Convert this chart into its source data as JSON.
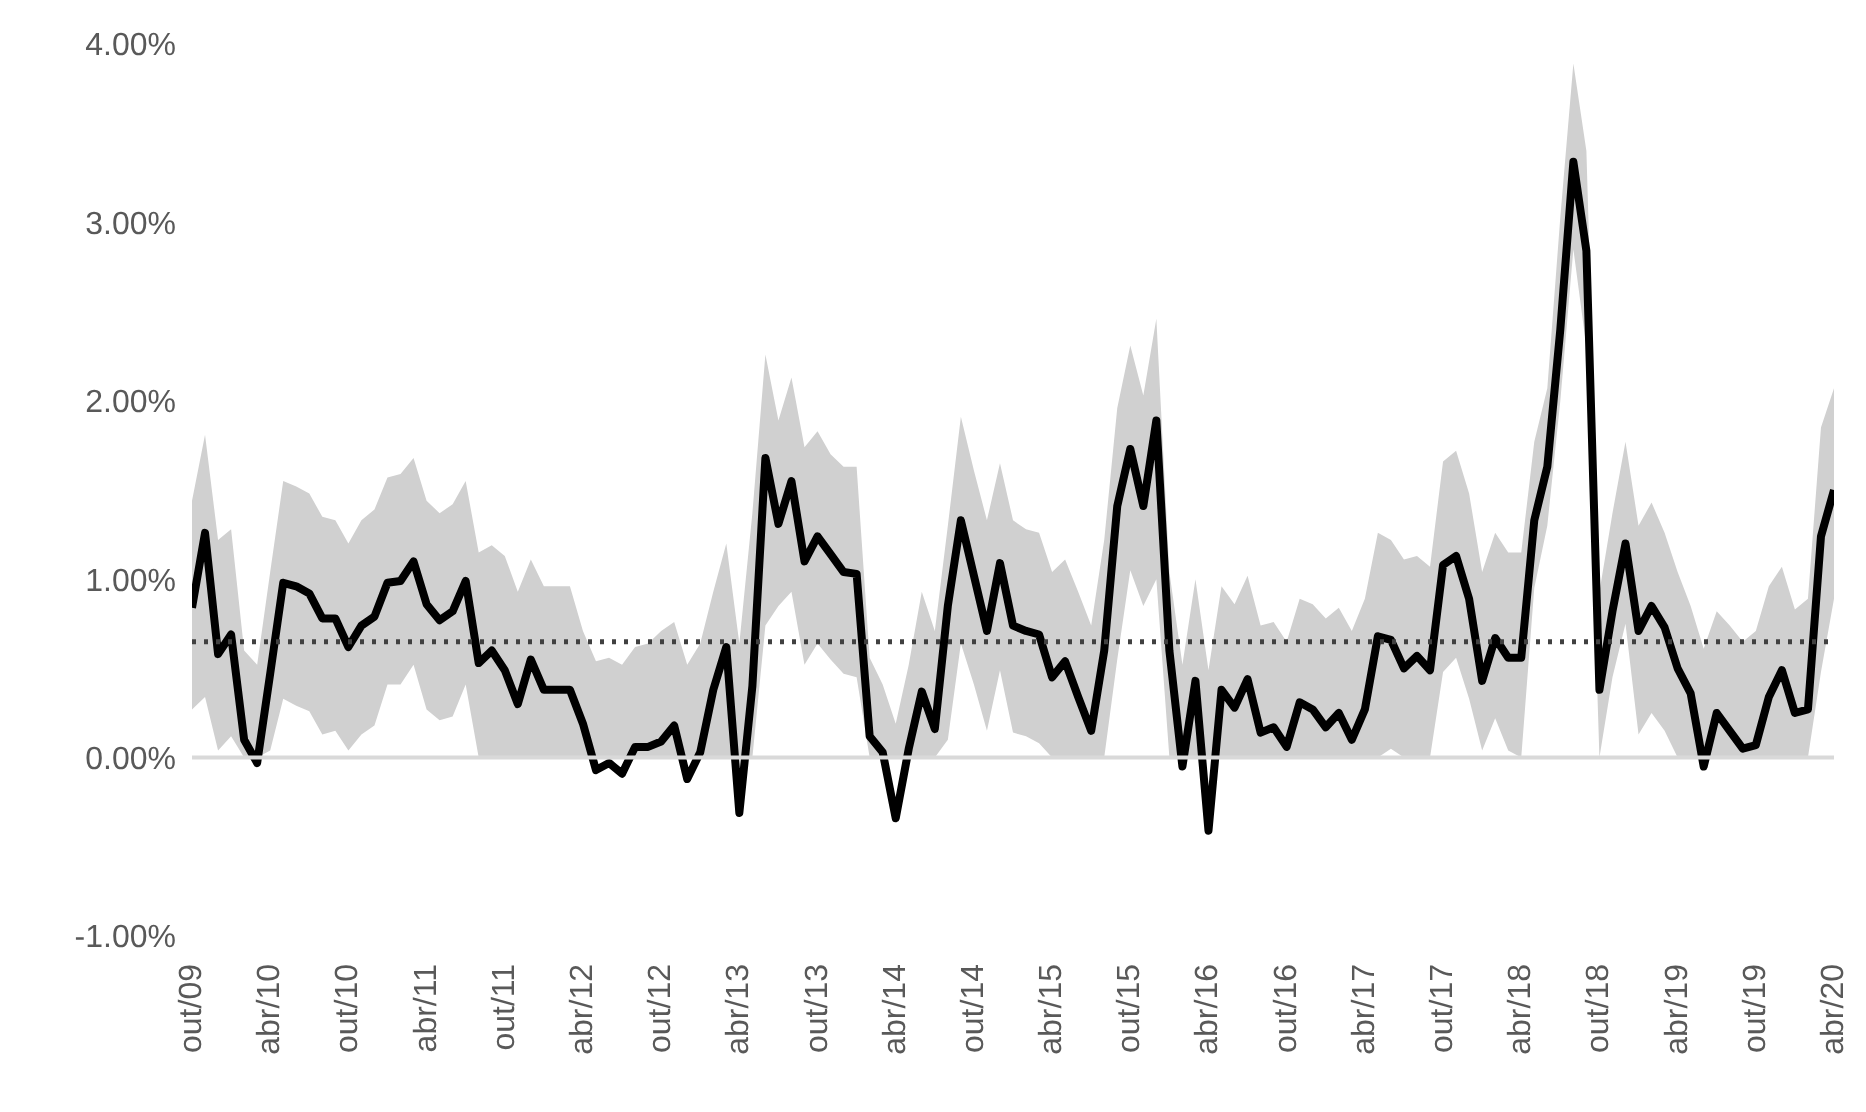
{
  "chart_data": {
    "type": "line",
    "categories": [
      "out/09",
      null,
      null,
      null,
      null,
      null,
      "abr/10",
      null,
      null,
      null,
      null,
      null,
      "out/10",
      null,
      null,
      null,
      null,
      null,
      "abr/11",
      null,
      null,
      null,
      null,
      null,
      "out/11",
      null,
      null,
      null,
      null,
      null,
      "abr/12",
      null,
      null,
      null,
      null,
      null,
      "out/12",
      null,
      null,
      null,
      null,
      null,
      "abr/13",
      null,
      null,
      null,
      null,
      null,
      "out/13",
      null,
      null,
      null,
      null,
      null,
      "abr/14",
      null,
      null,
      null,
      null,
      null,
      "out/14",
      null,
      null,
      null,
      null,
      null,
      "abr/15",
      null,
      null,
      null,
      null,
      null,
      "out/15",
      null,
      null,
      null,
      null,
      null,
      "abr/16",
      null,
      null,
      null,
      null,
      null,
      "out/16",
      null,
      null,
      null,
      null,
      null,
      "abr/17",
      null,
      null,
      null,
      null,
      null,
      "out/17",
      null,
      null,
      null,
      null,
      null,
      "abr/18",
      null,
      null,
      null,
      null,
      null,
      "out/18",
      null,
      null,
      null,
      null,
      null,
      "abr/19",
      null,
      null,
      null,
      null,
      null,
      "out/19",
      null,
      null,
      null,
      null,
      null,
      "abr/20"
    ],
    "series": [
      {
        "color": "#000000",
        "values": [
          0.84,
          1.26,
          0.58,
          0.69,
          0.1,
          -0.03,
          0.47,
          0.98,
          0.96,
          0.92,
          0.78,
          0.78,
          0.62,
          0.74,
          0.79,
          0.98,
          0.99,
          1.1,
          0.86,
          0.77,
          0.82,
          0.99,
          0.53,
          0.6,
          0.49,
          0.3,
          0.55,
          0.38,
          0.38,
          0.38,
          0.19,
          -0.07,
          -0.03,
          -0.09,
          0.06,
          0.06,
          0.09,
          0.18,
          -0.12,
          0.03,
          0.38,
          0.62,
          -0.31,
          0.4,
          1.68,
          1.31,
          1.55,
          1.1,
          1.24,
          1.14,
          1.04,
          1.03,
          0.12,
          0.03,
          -0.34,
          0.05,
          0.37,
          0.16,
          0.85,
          1.33,
          1.02,
          0.71,
          1.09,
          0.74,
          0.71,
          0.69,
          0.45,
          0.54,
          0.34,
          0.15,
          0.6,
          1.41,
          1.73,
          1.41,
          1.89,
          0.6,
          -0.05,
          0.43,
          -0.41,
          0.38,
          0.28,
          0.44,
          0.14,
          0.17,
          0.06,
          0.31,
          0.27,
          0.17,
          0.25,
          0.1,
          0.27,
          0.68,
          0.66,
          0.5,
          0.57,
          0.49,
          1.08,
          1.13,
          0.89,
          0.43,
          0.67,
          0.56,
          0.56,
          1.33,
          1.63,
          2.4,
          3.34,
          2.84,
          0.38,
          0.82,
          1.2,
          0.71,
          0.85,
          0.73,
          0.5,
          0.36,
          -0.05,
          0.25,
          0.15,
          0.05,
          0.07,
          0.34,
          0.49,
          0.25,
          0.27,
          1.24,
          1.5
        ],
        "lower": [
          0.27,
          0.34,
          0.04,
          0.12,
          0,
          0,
          0.04,
          0.33,
          0.29,
          0.26,
          0.13,
          0.15,
          0.04,
          0.13,
          0.18,
          0.41,
          0.41,
          0.52,
          0.27,
          0.21,
          0.23,
          0.41,
          0,
          0,
          0,
          0,
          0,
          0,
          0,
          0,
          0,
          0,
          0,
          0,
          0,
          0,
          0,
          0,
          0,
          0,
          0,
          0,
          0,
          0,
          0.74,
          0.85,
          0.93,
          0.52,
          0.64,
          0.55,
          0.47,
          0.45,
          0,
          0,
          0,
          0,
          0,
          0,
          0.1,
          0.64,
          0.41,
          0.15,
          0.49,
          0.14,
          0.12,
          0.08,
          0,
          0,
          0,
          0,
          0,
          0.55,
          1.05,
          0.85,
          1.0,
          0,
          0,
          0,
          0,
          0,
          0,
          0,
          0,
          0,
          0,
          0,
          0,
          0,
          0,
          0,
          0,
          0,
          0.05,
          0,
          0,
          0,
          0.48,
          0.56,
          0.33,
          0.04,
          0.22,
          0.04,
          0,
          0.95,
          1.3,
          2.0,
          2.85,
          2.3,
          0,
          0.45,
          0.75,
          0.13,
          0.25,
          0.15,
          0,
          0,
          0,
          0,
          0,
          0,
          0,
          0,
          0,
          0,
          0,
          0.48,
          0.89
        ],
        "upper": [
          1.44,
          1.81,
          1.22,
          1.28,
          0.6,
          0.52,
          1.04,
          1.55,
          1.52,
          1.48,
          1.35,
          1.33,
          1.2,
          1.33,
          1.39,
          1.57,
          1.59,
          1.68,
          1.44,
          1.37,
          1.42,
          1.55,
          1.15,
          1.19,
          1.13,
          0.93,
          1.11,
          0.96,
          0.96,
          0.96,
          0.71,
          0.54,
          0.56,
          0.52,
          0.62,
          0.64,
          0.71,
          0.76,
          0.52,
          0.64,
          0.93,
          1.2,
          0.64,
          1.37,
          2.26,
          1.89,
          2.13,
          1.74,
          1.83,
          1.7,
          1.63,
          1.63,
          0.56,
          0.41,
          0.19,
          0.52,
          0.93,
          0.71,
          1.3,
          1.91,
          1.61,
          1.33,
          1.65,
          1.33,
          1.28,
          1.26,
          1.04,
          1.11,
          0.93,
          0.74,
          1.22,
          1.96,
          2.31,
          2.03,
          2.46,
          1.04,
          0.52,
          1.0,
          0.49,
          0.96,
          0.86,
          1.02,
          0.74,
          0.76,
          0.65,
          0.89,
          0.86,
          0.78,
          0.84,
          0.71,
          0.89,
          1.26,
          1.22,
          1.11,
          1.13,
          1.07,
          1.66,
          1.72,
          1.48,
          1.04,
          1.26,
          1.15,
          1.15,
          1.77,
          2.07,
          3.03,
          3.89,
          3.4,
          0.93,
          1.37,
          1.77,
          1.3,
          1.43,
          1.26,
          1.04,
          0.85,
          0.61,
          0.82,
          0.74,
          0.65,
          0.71,
          0.96,
          1.07,
          0.83,
          0.89,
          1.85,
          2.07
        ]
      }
    ],
    "ylim": [
      -1,
      4
    ],
    "yticks": [
      {
        "value": -1,
        "label": "-1.00%"
      },
      {
        "value": 0,
        "label": "0.00%"
      },
      {
        "value": 1,
        "label": "1.00%"
      },
      {
        "value": 2,
        "label": "2.00%"
      },
      {
        "value": 3,
        "label": "3.00%"
      },
      {
        "value": 4,
        "label": "4.00%"
      }
    ],
    "ref_lines": [
      {
        "axis": "y",
        "value": 0.65,
        "color": "#404040",
        "line_style": "dotted"
      }
    ],
    "legend": false,
    "marker": "none",
    "line_style": "solid"
  }
}
